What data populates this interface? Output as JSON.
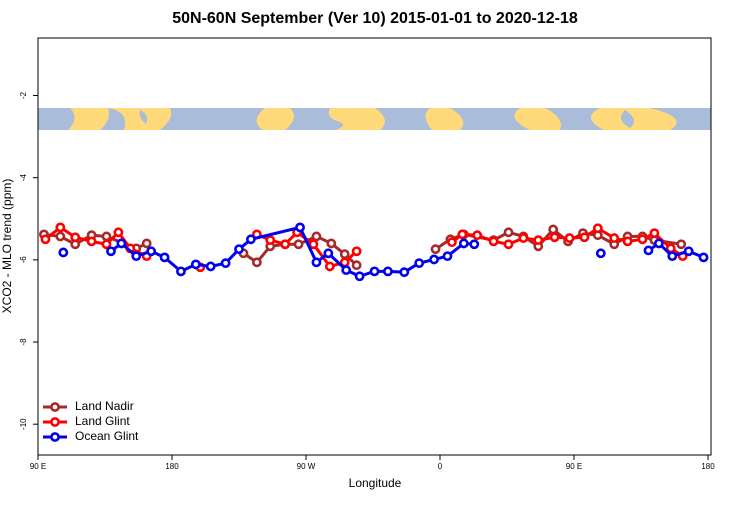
{
  "chart_data": {
    "type": "line",
    "title": "50N-60N September (Ver 10)   2015-01-01 to 2020-12-18",
    "x_label": "Longitude",
    "y_label": "XCO2 - MLO trend (ppm)",
    "xlim": [
      90,
      542
    ],
    "ylim": [
      -10.75,
      -0.6
    ],
    "xticks": [
      {
        "value": 90,
        "label": "90 E"
      },
      {
        "value": 180,
        "label": "180"
      },
      {
        "value": 270,
        "label": "90 W"
      },
      {
        "value": 360,
        "label": "0"
      },
      {
        "value": 450,
        "label": "90 E"
      },
      {
        "value": 540,
        "label": "180"
      }
    ],
    "yticks": [
      -2,
      -4,
      -6,
      -8,
      -10
    ],
    "legend": "bottom-left",
    "series": [
      {
        "name": "Land Nadir",
        "color": "#a52a2a",
        "x": [
          94,
          105,
          115,
          126,
          136,
          156,
          163,
          null,
          228,
          237,
          246,
          256,
          265,
          277,
          287,
          296,
          304,
          null,
          357,
          367,
          376,
          396,
          406,
          416,
          426,
          436,
          446,
          456,
          466,
          477,
          486,
          496,
          504,
          522
        ],
        "values": [
          -5.38,
          -5.43,
          -5.62,
          -5.4,
          -5.43,
          -5.72,
          -5.6,
          null,
          -5.84,
          -6.06,
          -5.67,
          -5.62,
          -5.62,
          -5.43,
          -5.6,
          -5.86,
          -6.13,
          null,
          -5.74,
          -5.5,
          -5.38,
          -5.52,
          -5.33,
          -5.43,
          -5.67,
          -5.26,
          -5.55,
          -5.35,
          -5.4,
          -5.62,
          -5.43,
          -5.43,
          -5.52,
          -5.62
        ]
      },
      {
        "name": "Land Glint",
        "color": "#ff0000",
        "x": [
          95,
          105,
          115,
          126,
          136,
          144,
          152,
          163,
          null,
          199,
          null,
          237,
          246,
          256,
          264,
          275,
          286,
          296,
          304,
          null,
          368,
          375,
          385,
          396,
          406,
          416,
          426,
          437,
          447,
          457,
          466,
          477,
          486,
          496,
          504,
          515,
          523
        ],
        "values": [
          -5.5,
          -5.21,
          -5.45,
          -5.55,
          -5.62,
          -5.33,
          -5.72,
          -5.91,
          null,
          -6.18,
          null,
          -5.38,
          -5.52,
          -5.62,
          -5.33,
          -5.62,
          -6.16,
          -6.06,
          -5.79,
          null,
          -5.57,
          -5.38,
          -5.4,
          -5.55,
          -5.62,
          -5.47,
          -5.52,
          -5.45,
          -5.47,
          -5.45,
          -5.23,
          -5.47,
          -5.55,
          -5.5,
          -5.35,
          -5.72,
          -5.91
        ]
      },
      {
        "name": "Ocean Glint",
        "color": "#0000ee",
        "x": [
          107,
          null,
          139,
          146,
          156,
          166,
          175,
          186,
          196,
          206,
          216,
          225,
          233,
          266,
          277,
          285,
          297,
          306,
          316,
          325,
          336,
          346,
          356,
          365,
          376,
          383,
          null,
          468,
          null,
          500,
          507,
          516,
          527,
          537
        ],
        "values": [
          -5.82,
          null,
          -5.79,
          -5.6,
          -5.91,
          -5.79,
          -5.94,
          -6.28,
          -6.11,
          -6.16,
          -6.08,
          -5.74,
          -5.5,
          -5.21,
          -6.06,
          -5.84,
          -6.25,
          -6.4,
          -6.28,
          -6.28,
          -6.3,
          -6.08,
          -5.99,
          -5.91,
          -5.6,
          -5.62,
          null,
          -5.84,
          null,
          -5.77,
          -5.6,
          -5.91,
          -5.79,
          -5.94
        ]
      }
    ]
  }
}
